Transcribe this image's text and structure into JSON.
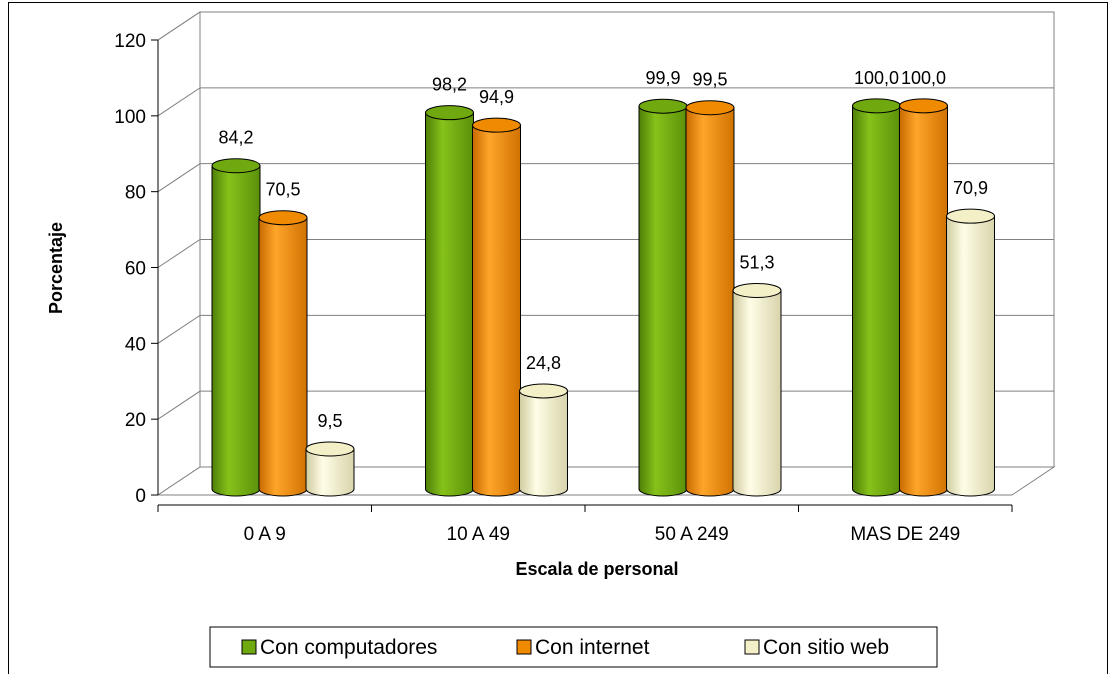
{
  "chart_data": {
    "type": "bar",
    "style": "3d-cylinder",
    "title": "",
    "xlabel": "Escala de personal",
    "ylabel": "Porcentaje",
    "ylim": [
      0,
      120
    ],
    "yticks": [
      0,
      20,
      40,
      60,
      80,
      100,
      120
    ],
    "grid": true,
    "legend_position": "bottom",
    "categories": [
      "0 A 9",
      "10 A 49",
      "50 A 249",
      "MAS DE 249"
    ],
    "series": [
      {
        "name": "Con computadores",
        "values": [
          84.2,
          98.2,
          99.9,
          100.0
        ],
        "labels": [
          "84,2",
          "98,2",
          "99,9",
          "100,0"
        ],
        "color": "#6fa80f"
      },
      {
        "name": "Con internet",
        "values": [
          70.5,
          94.9,
          99.5,
          100.0
        ],
        "labels": [
          "70,5",
          "94,9",
          "99,5",
          "100,0"
        ],
        "color": "#f08a00"
      },
      {
        "name": "Con sitio web",
        "values": [
          9.5,
          24.8,
          51.3,
          70.9
        ],
        "labels": [
          "9,5",
          "24,8",
          "51,3",
          "70,9"
        ],
        "color": "#f3f0c8"
      }
    ]
  }
}
